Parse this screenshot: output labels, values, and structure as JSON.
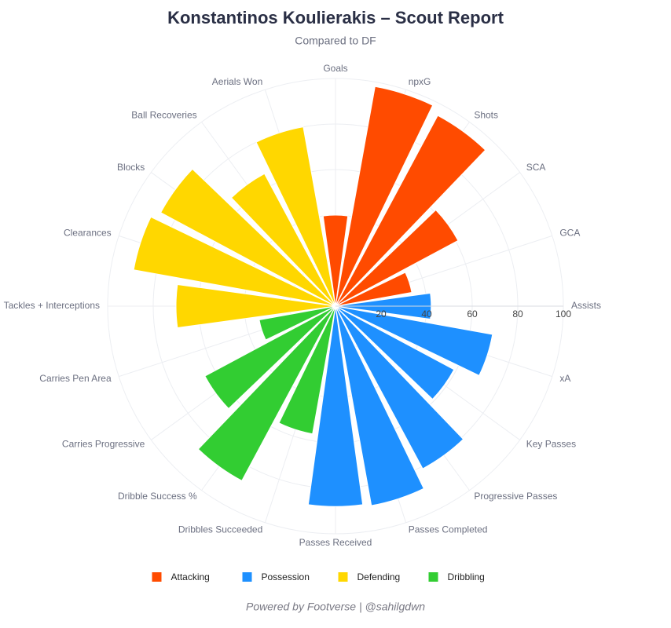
{
  "chart_data": {
    "type": "barpolar",
    "title": "Konstantinos Koulierakis – Scout Report",
    "subtitle": "Compared to DF",
    "footer": "Powered by Footverse | @sahilgdwn",
    "categories": [
      "Goals",
      "npxG",
      "Shots",
      "SCA",
      "GCA",
      "Assists",
      "xA",
      "Key Passes",
      "Progressive Passes",
      "Passes Completed",
      "Passes Received",
      "Dribbles Succeeded",
      "Dribble Success %",
      "Carries Progressive",
      "Carries Pen Area",
      "Tackles + Interceptions",
      "Clearances",
      "Blocks",
      "Ball Recoveries",
      "Aerials Won"
    ],
    "series": [
      {
        "name": "Attacking",
        "color": "#ff4b00",
        "values": [
          40,
          98,
          95,
          61,
          34,
          null,
          null,
          null,
          null,
          null,
          null,
          null,
          null,
          null,
          null,
          null,
          null,
          null,
          null,
          null
        ]
      },
      {
        "name": "Possession",
        "color": "#1e90ff",
        "values": [
          null,
          null,
          null,
          null,
          null,
          42,
          70,
          59,
          81,
          89,
          88,
          null,
          null,
          null,
          null,
          null,
          null,
          null,
          null,
          null
        ]
      },
      {
        "name": "Defending",
        "color": "#ffd700",
        "values": [
          null,
          null,
          null,
          null,
          null,
          null,
          null,
          null,
          null,
          null,
          null,
          null,
          null,
          null,
          null,
          70,
          90,
          87,
          66,
          80
        ]
      },
      {
        "name": "Dribbling",
        "color": "#32cd32",
        "values": [
          null,
          null,
          null,
          null,
          null,
          null,
          null,
          null,
          null,
          null,
          null,
          57,
          87,
          65,
          34,
          null,
          null,
          null,
          null,
          null
        ]
      }
    ],
    "rlim": [
      0,
      100
    ],
    "rticks": [
      20,
      40,
      60,
      80,
      100
    ],
    "grid": true,
    "legend": "bottom"
  }
}
